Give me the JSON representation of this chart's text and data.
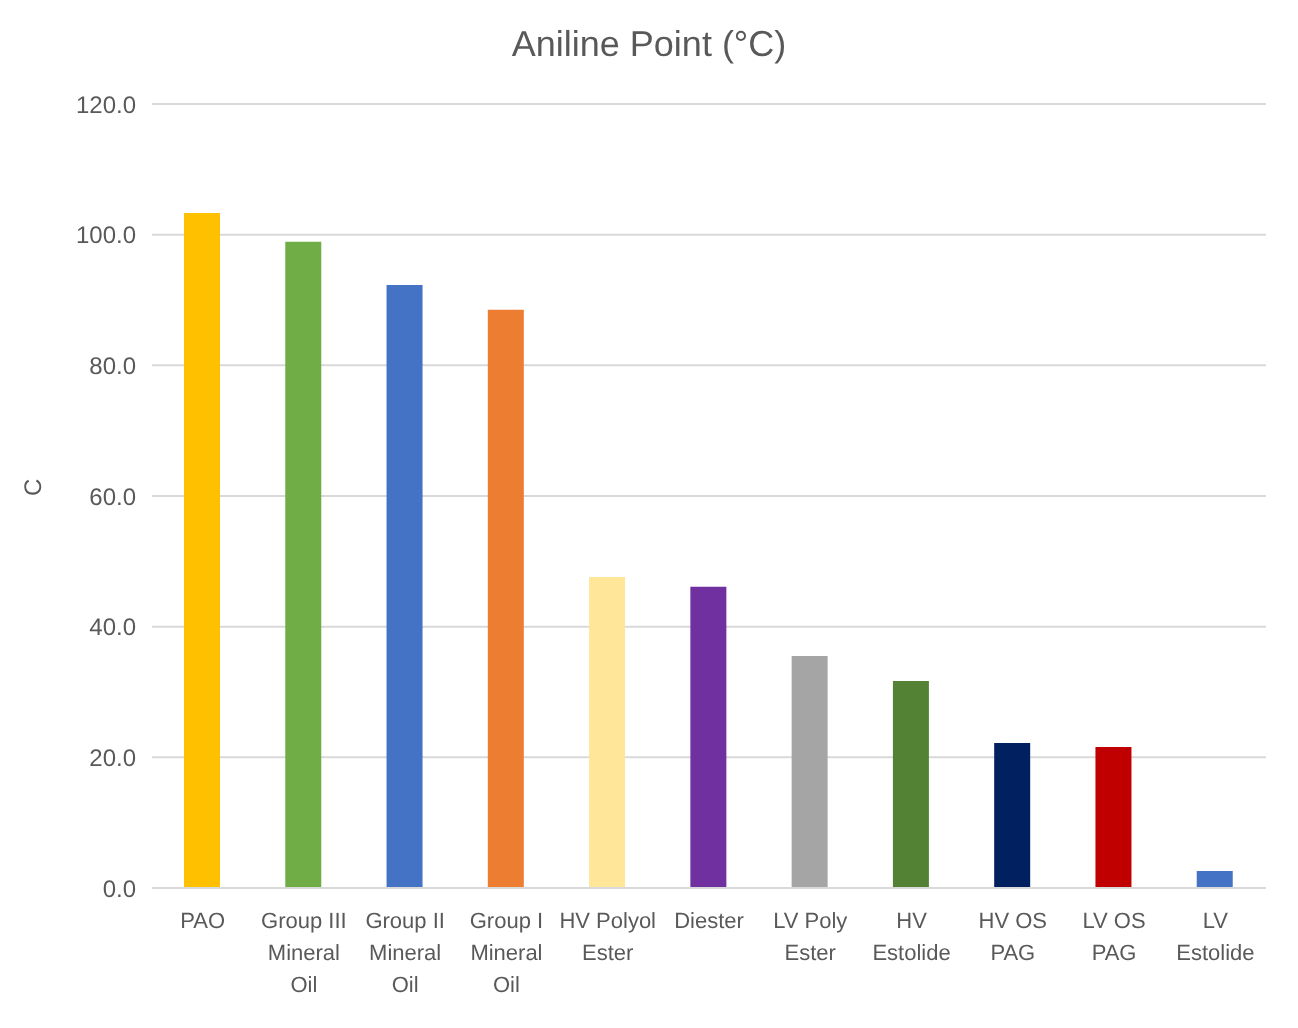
{
  "chart_data": {
    "type": "bar",
    "title": "Aniline Point (°C)",
    "ylabel": "C",
    "categories": [
      "PAO",
      "Group III Mineral Oil",
      "Group II Mineral Oil",
      "Group I Mineral Oil",
      "HV Polyol Ester",
      "Diester",
      "LV Poly Ester",
      "HV Estolide",
      "HV OS PAG",
      "LV OS PAG",
      "LV Estolide"
    ],
    "values": [
      103.3,
      98.9,
      92.3,
      88.5,
      47.6,
      46.1,
      35.5,
      31.7,
      22.2,
      21.6,
      2.6
    ],
    "colors": [
      "#ffc000",
      "#70ad47",
      "#4472c4",
      "#ed7d31",
      "#ffe699",
      "#7030a0",
      "#a5a5a5",
      "#548235",
      "#002060",
      "#c00000",
      "#4472c4"
    ],
    "ylim": [
      0,
      120
    ],
    "yticks": [
      {
        "value": 0,
        "label": "0.0"
      },
      {
        "value": 20,
        "label": "20.0"
      },
      {
        "value": 40,
        "label": "40.0"
      },
      {
        "value": 60,
        "label": "60.0"
      },
      {
        "value": 80,
        "label": "80.0"
      },
      {
        "value": 100,
        "label": "100.0"
      },
      {
        "value": 120,
        "label": "120.0"
      }
    ],
    "grid": "y",
    "legend": false
  }
}
